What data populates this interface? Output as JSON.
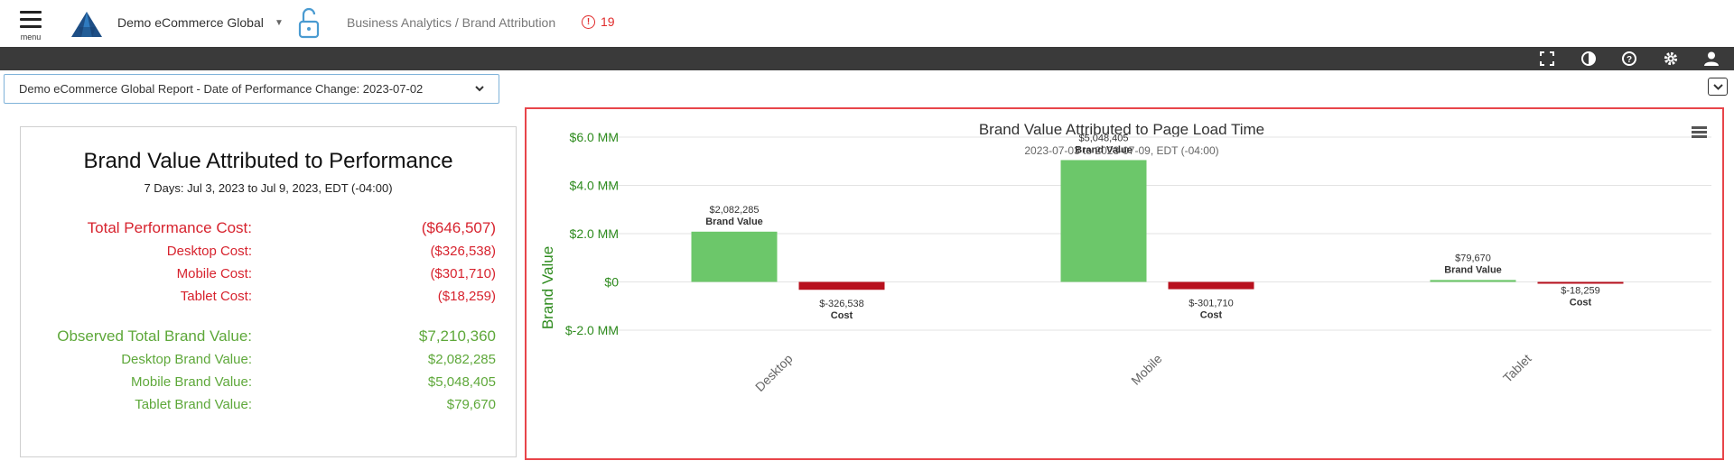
{
  "header": {
    "menu_label": "menu",
    "org_name": "Demo eCommerce Global",
    "breadcrumb": "Business Analytics / Brand Attribution",
    "alert_count": "19"
  },
  "toolbar": {
    "icons": [
      "fullscreen-icon",
      "contrast-icon",
      "help-icon",
      "gear-icon",
      "user-icon"
    ]
  },
  "report_select": {
    "value": "Demo eCommerce Global Report - Date of Performance Change: 2023-07-02"
  },
  "summary": {
    "title": "Brand Value Attributed to Performance",
    "subtitle": "7 Days: Jul 3, 2023 to Jul 9, 2023, EDT (-04:00)",
    "cost_rows": [
      {
        "label": "Total Performance Cost:",
        "value": "($646,507)"
      },
      {
        "label": "Desktop Cost:",
        "value": "($326,538)"
      },
      {
        "label": "Mobile Cost:",
        "value": "($301,710)"
      },
      {
        "label": "Tablet Cost:",
        "value": "($18,259)"
      }
    ],
    "value_rows": [
      {
        "label": "Observed Total Brand Value:",
        "value": "$7,210,360"
      },
      {
        "label": "Desktop Brand Value:",
        "value": "$2,082,285"
      },
      {
        "label": "Mobile Brand Value:",
        "value": "$5,048,405"
      },
      {
        "label": "Tablet Brand Value:",
        "value": "$79,670"
      }
    ],
    "colors": {
      "cost": "#d7232e",
      "value": "#5ea83a"
    }
  },
  "chart_data": {
    "type": "bar",
    "title": "Brand Value Attributed to Page Load Time",
    "subtitle": "2023-07-03 to 2023-07-09, EDT (-04:00)",
    "ylabel": "Brand Value",
    "categories": [
      "Desktop",
      "Mobile",
      "Tablet"
    ],
    "series": [
      {
        "name": "Brand Value",
        "values": [
          2082285,
          5048405,
          79670
        ],
        "labels": [
          "$2,082,285",
          "$5,048,405",
          "$79,670"
        ],
        "color": "#6cc76a"
      },
      {
        "name": "Cost",
        "values": [
          -326538,
          -301710,
          -18259
        ],
        "labels": [
          "$-326,538",
          "$-301,710",
          "$-18,259"
        ],
        "color": "#b8101e"
      }
    ],
    "yticks": [
      {
        "value": 6000000,
        "label": "$6.0 MM"
      },
      {
        "value": 4000000,
        "label": "$4.0 MM"
      },
      {
        "value": 2000000,
        "label": "$2.0 MM"
      },
      {
        "value": 0,
        "label": "$0"
      },
      {
        "value": -2000000,
        "label": "$-2.0 MM"
      }
    ],
    "ylim": [
      -2000000,
      6000000
    ],
    "grid": true,
    "axis_color": "#2e8b1e"
  }
}
